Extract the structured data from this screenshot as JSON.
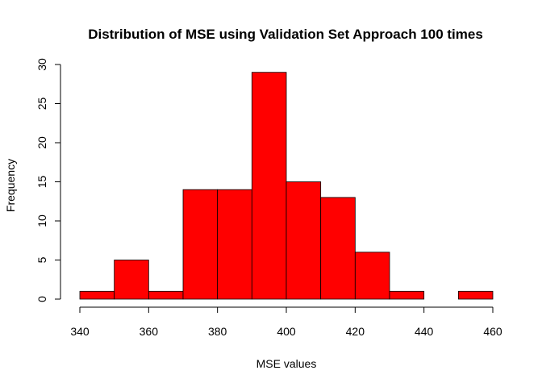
{
  "chart_data": {
    "type": "bar",
    "subtype": "histogram",
    "title": "Distribution of MSE using Validation Set Approach 100 times",
    "xlabel": "MSE values",
    "ylabel": "Frequency",
    "bin_edges": [
      340,
      350,
      360,
      370,
      380,
      390,
      400,
      410,
      420,
      430,
      440,
      450,
      460
    ],
    "values": [
      1,
      5,
      1,
      14,
      14,
      29,
      15,
      13,
      6,
      1,
      0,
      1
    ],
    "xlim": [
      340,
      460
    ],
    "ylim": [
      0,
      30
    ],
    "x_ticks": [
      340,
      360,
      380,
      400,
      420,
      440,
      460
    ],
    "y_ticks": [
      0,
      5,
      10,
      15,
      20,
      25,
      30
    ],
    "bar_color": "#ff0000",
    "border_color": "#000000",
    "grid": false,
    "legend": "none"
  }
}
